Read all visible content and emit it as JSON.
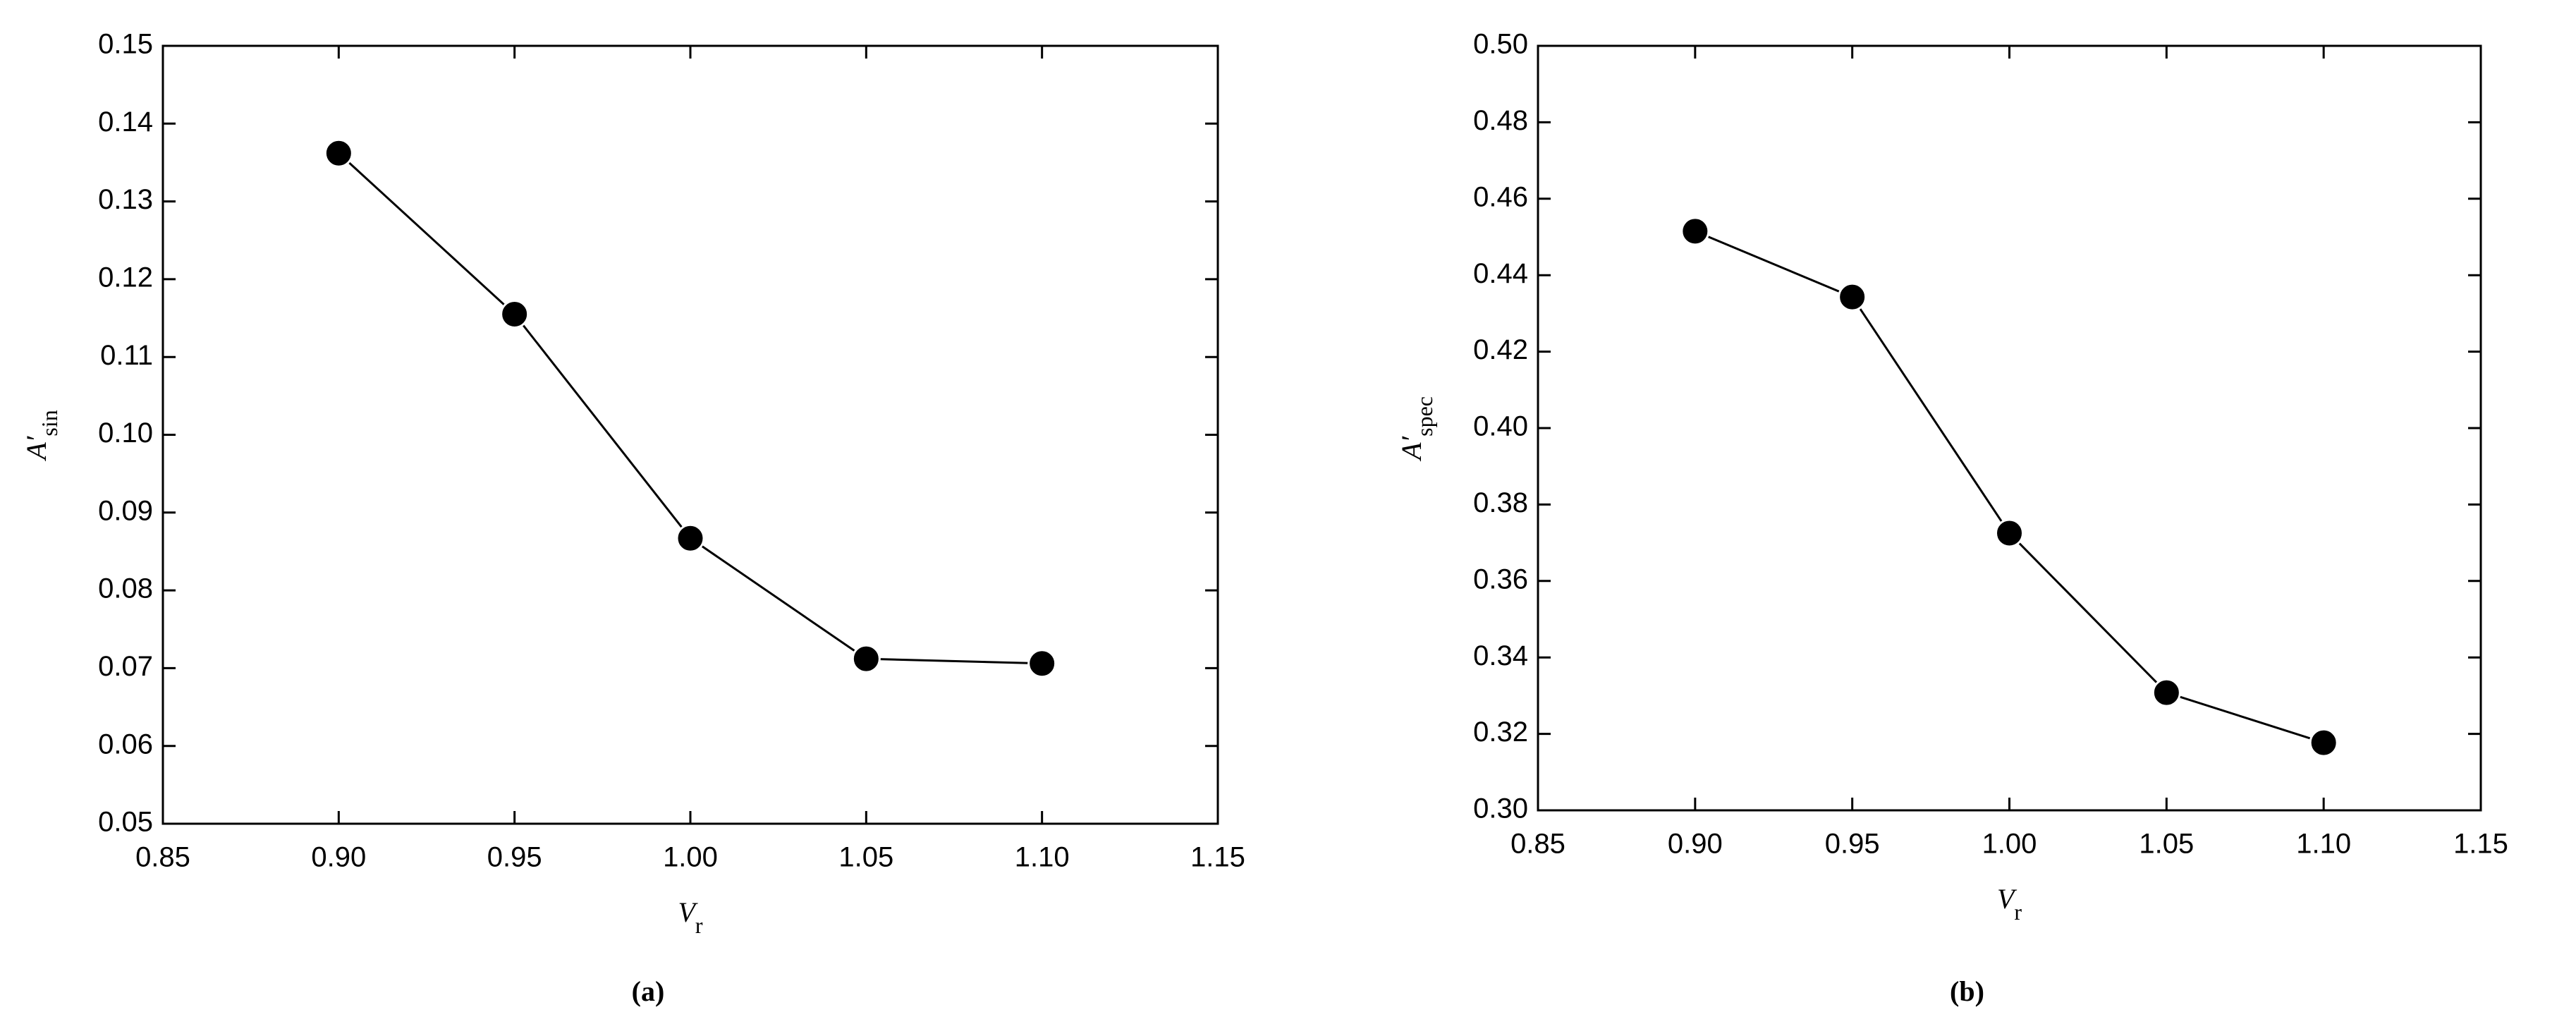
{
  "chart_data": [
    {
      "type": "line",
      "caption": "(a)",
      "x_label": {
        "main": "V",
        "sub": "r"
      },
      "y_label": {
        "main": "A′",
        "sub": "sin"
      },
      "x": [
        0.9,
        0.95,
        1.0,
        1.05,
        1.1
      ],
      "series": [
        {
          "color": "#000000",
          "values": [
            0.1362,
            0.1155,
            0.0867,
            0.0712,
            0.0706
          ]
        }
      ],
      "xlim": [
        0.85,
        1.15
      ],
      "xticks": [
        0.85,
        {
          "value": 0.9,
          "label": "0.90"
        },
        0.95,
        {
          "value": 1.0,
          "label": "1.00"
        },
        1.05,
        {
          "value": 1.1,
          "label": "1.10"
        },
        1.15
      ],
      "ylim": [
        0.05,
        0.15
      ],
      "yticks": [
        0.05,
        0.06,
        0.07,
        0.08,
        0.09,
        {
          "value": 0.1,
          "label": "0.10"
        },
        0.11,
        0.12,
        0.13,
        0.14,
        0.15
      ]
    },
    {
      "type": "line",
      "caption": "(b)",
      "x_label": {
        "main": "V",
        "sub": "r"
      },
      "y_label": {
        "main": "A′",
        "sub": "spec"
      },
      "x": [
        0.9,
        0.95,
        1.0,
        1.05,
        1.1
      ],
      "series": [
        {
          "color": "#000000",
          "values": [
            0.4515,
            0.4343,
            0.3725,
            0.3308,
            0.3177
          ]
        }
      ],
      "xlim": [
        0.85,
        1.15
      ],
      "xticks": [
        0.85,
        {
          "value": 0.9,
          "label": "0.90"
        },
        0.95,
        {
          "value": 1.0,
          "label": "1.00"
        },
        1.05,
        {
          "value": 1.1,
          "label": "1.10"
        },
        1.15
      ],
      "ylim": [
        0.3,
        0.5
      ],
      "yticks": [
        {
          "value": 0.3,
          "label": "0.30"
        },
        0.32,
        0.34,
        0.36,
        0.38,
        {
          "value": 0.4,
          "label": "0.40"
        },
        0.42,
        0.44,
        0.46,
        0.48,
        {
          "value": 0.5,
          "label": "0.50"
        }
      ]
    }
  ]
}
